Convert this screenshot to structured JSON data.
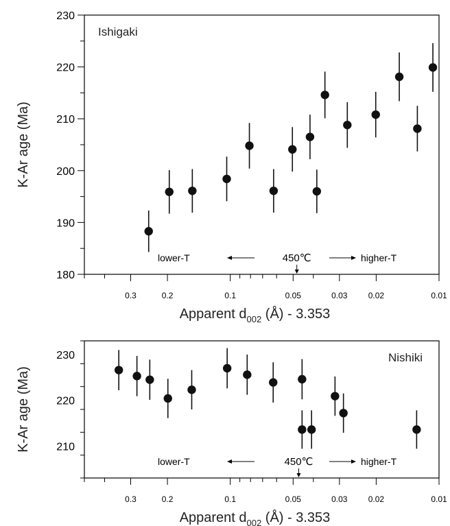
{
  "chart_data": [
    {
      "type": "scatter",
      "panel_label": "Ishigaki",
      "xlabel": "Apparent d002 (Å) - 3.353",
      "xlabel_main": "Apparent  d",
      "xlabel_sub": "002",
      "xlabel_tail": " (Å) - 3.353",
      "ylabel": "K-Ar age (Ma)",
      "xscale": "log-reversed",
      "xlim": [
        0.5,
        0.01
      ],
      "ylim": [
        180,
        230
      ],
      "x_ticks": [
        0.3,
        0.2,
        0.1,
        0.05,
        0.03,
        0.02,
        0.01
      ],
      "x_tick_labels": [
        "0.3",
        "0.2",
        "0.1",
        "0.05",
        "0.03",
        "0.02",
        "0.01"
      ],
      "y_ticks": [
        180,
        190,
        200,
        210,
        220,
        230
      ],
      "y_tick_labels": [
        "180",
        "190",
        "200",
        "210",
        "220",
        "230"
      ],
      "annotation": {
        "left": "lower-T",
        "center": "450℃",
        "right": "higher-T",
        "marker_x": 0.048
      },
      "points": [
        {
          "x": 0.246,
          "y": 188.3,
          "err": 4.0
        },
        {
          "x": 0.196,
          "y": 195.9,
          "err": 4.2
        },
        {
          "x": 0.152,
          "y": 196.1,
          "err": 4.2
        },
        {
          "x": 0.104,
          "y": 198.4,
          "err": 4.3
        },
        {
          "x": 0.081,
          "y": 204.8,
          "err": 4.4
        },
        {
          "x": 0.062,
          "y": 196.1,
          "err": 4.2
        },
        {
          "x": 0.0504,
          "y": 204.1,
          "err": 4.3
        },
        {
          "x": 0.0415,
          "y": 206.5,
          "err": 4.3
        },
        {
          "x": 0.0385,
          "y": 196.0,
          "err": 4.2
        },
        {
          "x": 0.0352,
          "y": 214.6,
          "err": 4.5
        },
        {
          "x": 0.0275,
          "y": 208.8,
          "err": 4.4
        },
        {
          "x": 0.0201,
          "y": 210.8,
          "err": 4.4
        },
        {
          "x": 0.0155,
          "y": 218.1,
          "err": 4.7
        },
        {
          "x": 0.0127,
          "y": 208.1,
          "err": 4.4
        },
        {
          "x": 0.0107,
          "y": 219.9,
          "err": 4.7
        }
      ]
    },
    {
      "type": "scatter",
      "panel_label": "Nishiki",
      "xlabel": "Apparent d002 (Å) - 3.353",
      "xlabel_main": "Apparent  d",
      "xlabel_sub": "002",
      "xlabel_tail": " (Å) - 3.353",
      "ylabel": "K-Ar age (Ma)",
      "xscale": "log-reversed",
      "xlim": [
        0.5,
        0.01
      ],
      "ylim": [
        203,
        233
      ],
      "x_ticks": [
        0.3,
        0.2,
        0.1,
        0.05,
        0.03,
        0.02,
        0.01
      ],
      "x_tick_labels": [
        "0.3",
        "0.2",
        "0.1",
        "0.05",
        "0.03",
        "0.02",
        "0.01"
      ],
      "y_ticks": [
        210,
        220,
        230
      ],
      "y_tick_labels": [
        "210",
        "220",
        "230"
      ],
      "annotation": {
        "left": "lower-T",
        "center": "450℃",
        "right": "higher-T",
        "marker_x": 0.047
      },
      "points": [
        {
          "x": 0.342,
          "y": 226.6,
          "err": 4.4
        },
        {
          "x": 0.28,
          "y": 225.3,
          "err": 4.4
        },
        {
          "x": 0.243,
          "y": 224.5,
          "err": 4.4
        },
        {
          "x": 0.199,
          "y": 220.4,
          "err": 4.3
        },
        {
          "x": 0.153,
          "y": 222.3,
          "err": 4.3
        },
        {
          "x": 0.1035,
          "y": 227.0,
          "err": 4.4
        },
        {
          "x": 0.083,
          "y": 225.6,
          "err": 4.4
        },
        {
          "x": 0.0623,
          "y": 223.9,
          "err": 4.4
        },
        {
          "x": 0.0453,
          "y": 224.6,
          "err": 4.4
        },
        {
          "x": 0.0453,
          "y": 213.6,
          "err": 4.2
        },
        {
          "x": 0.0408,
          "y": 213.6,
          "err": 4.2
        },
        {
          "x": 0.0315,
          "y": 220.9,
          "err": 4.3
        },
        {
          "x": 0.0287,
          "y": 217.2,
          "err": 4.3
        },
        {
          "x": 0.0128,
          "y": 213.6,
          "err": 4.2
        }
      ]
    }
  ]
}
